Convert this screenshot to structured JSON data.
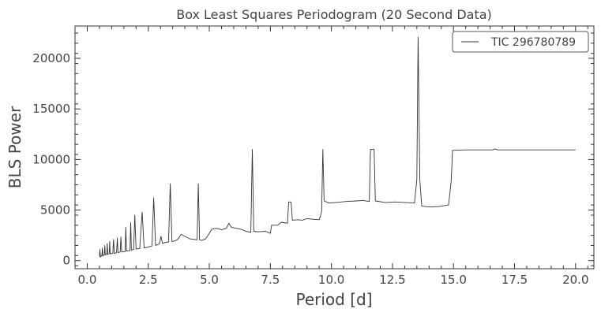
{
  "chart_data": {
    "type": "line",
    "title": "Box Least Squares Periodogram (20 Second Data)",
    "xlabel": "Period [d]",
    "ylabel": "BLS Power",
    "xlim": [
      -0.5,
      20.75
    ],
    "ylim": [
      -800,
      23200
    ],
    "x_ticks": [
      0.0,
      2.5,
      5.0,
      7.5,
      10.0,
      12.5,
      15.0,
      17.5,
      20.0
    ],
    "x_tick_labels": [
      "0.0",
      "2.5",
      "5.0",
      "7.5",
      "10.0",
      "12.5",
      "15.0",
      "17.5",
      "20.0"
    ],
    "y_ticks": [
      0,
      5000,
      10000,
      15000,
      20000
    ],
    "y_tick_labels": [
      "0",
      "5000",
      "10000",
      "15000",
      "20000"
    ],
    "grid": false,
    "legend": {
      "position": "top-right",
      "entries": [
        "TIC 296780789"
      ]
    },
    "series": [
      {
        "name": "TIC 296780789",
        "color": "#333333",
        "points": [
          [
            0.5,
            400
          ],
          [
            0.52,
            1100
          ],
          [
            0.54,
            350
          ],
          [
            0.6,
            500
          ],
          [
            0.62,
            1250
          ],
          [
            0.64,
            450
          ],
          [
            0.7,
            600
          ],
          [
            0.72,
            1500
          ],
          [
            0.74,
            550
          ],
          [
            0.8,
            650
          ],
          [
            0.82,
            1700
          ],
          [
            0.84,
            600
          ],
          [
            0.9,
            700
          ],
          [
            0.92,
            1900
          ],
          [
            0.94,
            650
          ],
          [
            1.05,
            750
          ],
          [
            1.08,
            2100
          ],
          [
            1.11,
            700
          ],
          [
            1.2,
            800
          ],
          [
            1.23,
            2250
          ],
          [
            1.26,
            800
          ],
          [
            1.35,
            850
          ],
          [
            1.38,
            2350
          ],
          [
            1.41,
            850
          ],
          [
            1.55,
            900
          ],
          [
            1.58,
            3300
          ],
          [
            1.61,
            950
          ],
          [
            1.75,
            1000
          ],
          [
            1.78,
            3750
          ],
          [
            1.81,
            1050
          ],
          [
            1.9,
            1100
          ],
          [
            1.95,
            4500
          ],
          [
            2.0,
            1150
          ],
          [
            2.15,
            1200
          ],
          [
            2.25,
            4800
          ],
          [
            2.33,
            1250
          ],
          [
            2.5,
            1350
          ],
          [
            2.65,
            1450
          ],
          [
            2.72,
            6200
          ],
          [
            2.8,
            1500
          ],
          [
            2.95,
            1650
          ],
          [
            3.02,
            2400
          ],
          [
            3.08,
            1700
          ],
          [
            3.2,
            1800
          ],
          [
            3.33,
            1850
          ],
          [
            3.4,
            7600
          ],
          [
            3.47,
            1900
          ],
          [
            3.6,
            1950
          ],
          [
            3.7,
            2100
          ],
          [
            3.85,
            2600
          ],
          [
            4.0,
            2400
          ],
          [
            4.2,
            2150
          ],
          [
            4.4,
            2100
          ],
          [
            4.5,
            2050
          ],
          [
            4.55,
            7600
          ],
          [
            4.6,
            2050
          ],
          [
            4.7,
            2000
          ],
          [
            4.85,
            2150
          ],
          [
            5.0,
            2700
          ],
          [
            5.1,
            3100
          ],
          [
            5.3,
            3200
          ],
          [
            5.5,
            3050
          ],
          [
            5.7,
            3200
          ],
          [
            5.8,
            3700
          ],
          [
            5.9,
            3300
          ],
          [
            6.1,
            3200
          ],
          [
            6.3,
            3100
          ],
          [
            6.5,
            2900
          ],
          [
            6.7,
            2800
          ],
          [
            6.76,
            11000
          ],
          [
            6.82,
            2900
          ],
          [
            7.0,
            2850
          ],
          [
            7.3,
            2900
          ],
          [
            7.5,
            2700
          ],
          [
            7.55,
            3500
          ],
          [
            7.8,
            3500
          ],
          [
            7.95,
            3800
          ],
          [
            8.2,
            3700
          ],
          [
            8.25,
            5800
          ],
          [
            8.35,
            5800
          ],
          [
            8.4,
            4000
          ],
          [
            8.6,
            4050
          ],
          [
            8.8,
            4000
          ],
          [
            9.0,
            4150
          ],
          [
            9.2,
            4100
          ],
          [
            9.5,
            4050
          ],
          [
            9.55,
            4400
          ],
          [
            9.6,
            4900
          ],
          [
            9.65,
            11000
          ],
          [
            9.7,
            5900
          ],
          [
            9.9,
            5700
          ],
          [
            10.2,
            5750
          ],
          [
            10.6,
            5850
          ],
          [
            11.0,
            5900
          ],
          [
            11.3,
            5950
          ],
          [
            11.55,
            5850
          ],
          [
            11.6,
            11000
          ],
          [
            11.75,
            11000
          ],
          [
            11.8,
            5900
          ],
          [
            12.2,
            5750
          ],
          [
            12.6,
            5800
          ],
          [
            13.0,
            5750
          ],
          [
            13.4,
            5700
          ],
          [
            13.5,
            8000
          ],
          [
            13.55,
            22100
          ],
          [
            13.62,
            8000
          ],
          [
            13.7,
            5400
          ],
          [
            14.0,
            5300
          ],
          [
            14.4,
            5350
          ],
          [
            14.8,
            5500
          ],
          [
            14.9,
            7700
          ],
          [
            14.93,
            9200
          ],
          [
            14.96,
            10900
          ],
          [
            15.5,
            10950
          ],
          [
            16.6,
            10950
          ],
          [
            16.7,
            11050
          ],
          [
            16.8,
            10950
          ],
          [
            20.0,
            10950
          ]
        ]
      }
    ]
  }
}
